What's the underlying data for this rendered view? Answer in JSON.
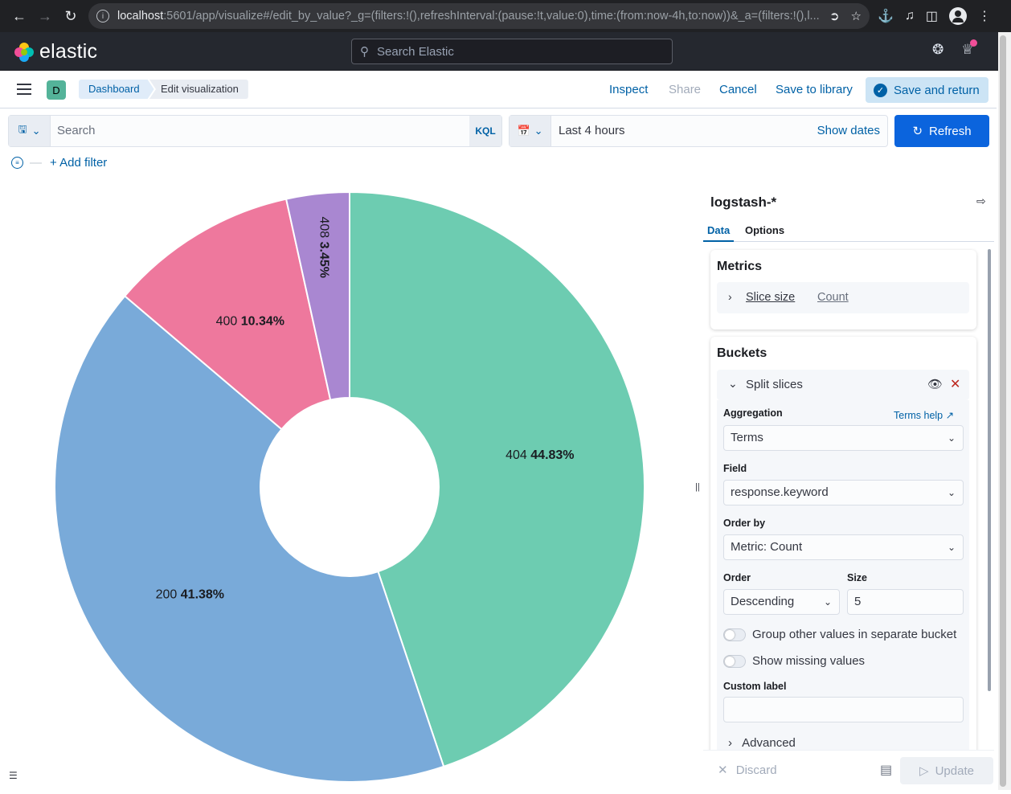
{
  "browser": {
    "url_host": "localhost",
    "url_rest": ":5601/app/visualize#/edit_by_value?_g=(filters:!(),refreshInterval:(pause:!t,value:0),time:(from:now-4h,to:now))&_a=(filters:!(),l..."
  },
  "header": {
    "brand": "elastic",
    "search_placeholder": "Search Elastic"
  },
  "topnav": {
    "space_initial": "D",
    "breadcrumbs": [
      "Dashboard",
      "Edit visualization"
    ],
    "inspect": "Inspect",
    "share": "Share",
    "cancel": "Cancel",
    "save_to_library": "Save to library",
    "save_and_return": "Save and return"
  },
  "query": {
    "placeholder": "Search",
    "language": "KQL",
    "time_range": "Last 4 hours",
    "show_dates": "Show dates",
    "refresh": "Refresh",
    "add_filter": "+ Add filter"
  },
  "chart_data": {
    "type": "pie",
    "donut": true,
    "slices": [
      {
        "label": "404",
        "percent": "44.83%",
        "value": 44.83,
        "color": "#6dccb1"
      },
      {
        "label": "200",
        "percent": "41.38%",
        "value": 41.38,
        "color": "#79aad9"
      },
      {
        "label": "400",
        "percent": "10.34%",
        "value": 10.34,
        "color": "#ee789d"
      },
      {
        "label": "408",
        "percent": "3.45%",
        "value": 3.45,
        "color": "#a987d1"
      }
    ]
  },
  "panel": {
    "index_pattern": "logstash-*",
    "tabs": [
      "Data",
      "Options"
    ],
    "metrics_title": "Metrics",
    "metric_label": "Slice size",
    "metric_value": "Count",
    "buckets_title": "Buckets",
    "bucket_label": "Split slices",
    "aggregation_label": "Aggregation",
    "terms_help": "Terms help",
    "aggregation_value": "Terms",
    "field_label": "Field",
    "field_value": "response.keyword",
    "order_by_label": "Order by",
    "order_by_value": "Metric: Count",
    "order_label": "Order",
    "order_value": "Descending",
    "size_label": "Size",
    "size_value": "5",
    "group_other": "Group other values in separate bucket",
    "show_missing": "Show missing values",
    "custom_label": "Custom label",
    "custom_label_value": "",
    "advanced": "Advanced",
    "discard": "Discard",
    "update": "Update"
  }
}
